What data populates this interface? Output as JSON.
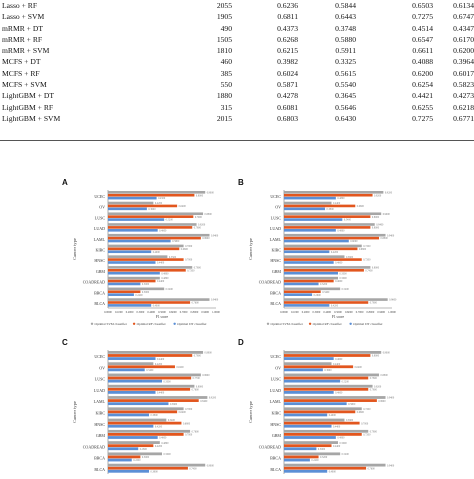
{
  "table": {
    "rows": [
      [
        "Lasso + RF",
        "2055",
        "0.6236",
        "0.5844",
        "0.6503",
        "0.6134"
      ],
      [
        "Lasso + SVM",
        "1905",
        "0.6811",
        "0.6443",
        "0.7275",
        "0.6747"
      ],
      [
        "mRMR + DT",
        "490",
        "0.4373",
        "0.3748",
        "0.4514",
        "0.4347"
      ],
      [
        "mRMR + RF",
        "1505",
        "0.6268",
        "0.5880",
        "0.6547",
        "0.6170"
      ],
      [
        "mRMR + SVM",
        "1810",
        "0.6215",
        "0.5911",
        "0.6611",
        "0.6200"
      ],
      [
        "MCFS + DT",
        "460",
        "0.3982",
        "0.3325",
        "0.4088",
        "0.3964"
      ],
      [
        "MCFS + RF",
        "385",
        "0.6024",
        "0.5615",
        "0.6200",
        "0.6017"
      ],
      [
        "MCFS + SVM",
        "550",
        "0.5871",
        "0.5540",
        "0.6254",
        "0.5823"
      ],
      [
        "LightGBM + DT",
        "1880",
        "0.4278",
        "0.3645",
        "0.4421",
        "0.4273"
      ],
      [
        "LightGBM + RF",
        "315",
        "0.6081",
        "0.5646",
        "0.6255",
        "0.6218"
      ],
      [
        "LightGBM + SVM",
        "2015",
        "0.6803",
        "0.6430",
        "0.7275",
        "0.6771"
      ]
    ]
  },
  "panels": [
    {
      "label": "A",
      "ylabel": "Cancer type",
      "xlabel": "F1 score",
      "legend": [
        "Optimal SVM classifier",
        "Optimal RF classifier",
        "Optimal DT classifier"
      ]
    },
    {
      "label": "B",
      "ylabel": "Cancer type",
      "xlabel": "F1 score",
      "legend": [
        "Optimal SVM classifier",
        "Optimal RF classifier",
        "Optimal DT classifier"
      ]
    },
    {
      "label": "C",
      "ylabel": "Cancer type",
      "xlabel": "",
      "legend": []
    },
    {
      "label": "D",
      "ylabel": "Cancer type",
      "xlabel": "",
      "legend": []
    }
  ],
  "colors": {
    "svm": "#a6a6a6",
    "rf": "#e2561e",
    "dt": "#5b8fd6"
  },
  "chart_data": [
    {
      "type": "bar",
      "orientation": "horizontal",
      "title": "A",
      "xlabel": "F1 score",
      "ylabel": "Cancer type",
      "xlim": [
        0,
        1
      ],
      "xticks": [
        "0.0000",
        "0.1000",
        "0.2000",
        "0.3000",
        "0.4000",
        "0.5000",
        "0.6000",
        "0.7000",
        "0.8000",
        "0.9000",
        "1.0000"
      ],
      "categories": [
        "UCEC",
        "OV",
        "LUSC",
        "LUAD",
        "LAML",
        "KIRC",
        "HNSC",
        "GBM",
        "COADREAD",
        "BRCA",
        "BLCA"
      ],
      "series": [
        {
          "name": "Optimal SVM classifier",
          "values": [
            0.9,
            0.42,
            0.88,
            0.82,
            0.94,
            0.7,
            0.55,
            0.78,
            0.48,
            0.52,
            0.94
          ]
        },
        {
          "name": "Optimal RF classifier",
          "values": [
            0.8,
            0.64,
            0.79,
            0.78,
            0.86,
            0.66,
            0.7,
            0.72,
            0.44,
            0.3,
            0.76
          ]
        },
        {
          "name": "Optimal DT classifier",
          "values": [
            0.45,
            0.36,
            0.52,
            0.46,
            0.58,
            0.4,
            0.44,
            0.48,
            0.3,
            0.24,
            0.4
          ]
        }
      ]
    },
    {
      "type": "bar",
      "orientation": "horizontal",
      "title": "B",
      "xlabel": "F1 score",
      "ylabel": "Cancer type",
      "xlim": [
        0,
        1
      ],
      "xticks": [
        "0.0000",
        "0.1000",
        "0.2000",
        "0.3000",
        "0.4000",
        "0.5000",
        "0.6000",
        "0.7000",
        "0.8000",
        "0.9000",
        "1.0000"
      ],
      "categories": [
        "UCEC",
        "OV",
        "LUSC",
        "LUAD",
        "LAML",
        "KIRC",
        "HNSC",
        "GBM",
        "COADREAD",
        "BRCA",
        "BLCA"
      ],
      "series": [
        {
          "name": "Optimal SVM classifier",
          "values": [
            0.92,
            0.44,
            0.9,
            0.84,
            0.94,
            0.72,
            0.56,
            0.8,
            0.5,
            0.52,
            0.96
          ]
        },
        {
          "name": "Optimal RF classifier",
          "values": [
            0.82,
            0.66,
            0.8,
            0.8,
            0.88,
            0.68,
            0.72,
            0.74,
            0.46,
            0.34,
            0.78
          ]
        },
        {
          "name": "Optimal DT classifier",
          "values": [
            0.48,
            0.38,
            0.54,
            0.48,
            0.6,
            0.42,
            0.46,
            0.5,
            0.32,
            0.26,
            0.42
          ]
        }
      ]
    },
    {
      "type": "bar",
      "orientation": "horizontal",
      "title": "C",
      "ylabel": "Cancer type",
      "xlim": [
        0,
        1
      ],
      "categories": [
        "UCEC",
        "OV",
        "LUSC",
        "LUAD",
        "LAML",
        "KIRC",
        "HNSC",
        "GBM",
        "COADREAD",
        "BRCA",
        "BLCA"
      ],
      "series": [
        {
          "values": [
            0.88,
            0.42,
            0.86,
            0.8,
            0.92,
            0.7,
            0.54,
            0.76,
            0.48,
            0.5,
            0.9
          ]
        },
        {
          "values": [
            0.78,
            0.62,
            0.77,
            0.76,
            0.84,
            0.64,
            0.68,
            0.7,
            0.42,
            0.3,
            0.74
          ]
        },
        {
          "values": [
            0.44,
            0.34,
            0.5,
            0.44,
            0.56,
            0.38,
            0.42,
            0.46,
            0.28,
            0.22,
            0.38
          ]
        }
      ]
    },
    {
      "type": "bar",
      "orientation": "horizontal",
      "title": "D",
      "ylabel": "Cancer type",
      "xlim": [
        0,
        1
      ],
      "categories": [
        "UCEC",
        "OV",
        "LUSC",
        "LUAD",
        "LAML",
        "KIRC",
        "HNSC",
        "GBM",
        "COADREAD",
        "BRCA",
        "BLCA"
      ],
      "series": [
        {
          "values": [
            0.9,
            0.44,
            0.88,
            0.82,
            0.94,
            0.72,
            0.56,
            0.78,
            0.5,
            0.52,
            0.94
          ]
        },
        {
          "values": [
            0.8,
            0.64,
            0.78,
            0.78,
            0.86,
            0.66,
            0.7,
            0.72,
            0.44,
            0.32,
            0.76
          ]
        },
        {
          "values": [
            0.46,
            0.36,
            0.52,
            0.46,
            0.58,
            0.4,
            0.44,
            0.48,
            0.3,
            0.24,
            0.4
          ]
        }
      ]
    }
  ]
}
